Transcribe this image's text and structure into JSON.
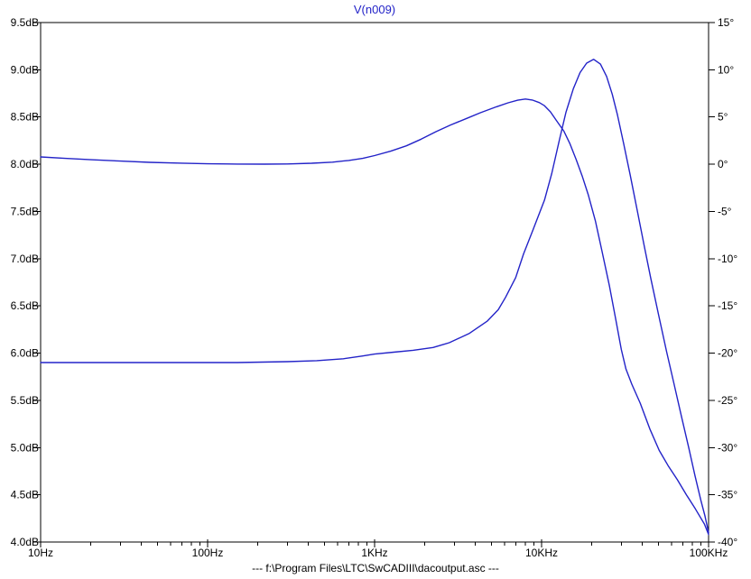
{
  "plot": {
    "title": "V(n009)",
    "title_color": "#2323c8",
    "trace_color": "#2323c8",
    "axis_color": "#000000",
    "background": "#ffffff"
  },
  "status_bar": {
    "text": "--- f:\\Program Files\\LTC\\SwCADIII\\dacoutput.asc ---"
  },
  "chart_data": {
    "type": "line",
    "title": "V(n009)",
    "x_scale": "log",
    "x_range": [
      10,
      100000
    ],
    "grid": false,
    "x_ticks": [
      {
        "value": 10,
        "label": "10Hz"
      },
      {
        "value": 100,
        "label": "100Hz"
      },
      {
        "value": 1000,
        "label": "1KHz"
      },
      {
        "value": 10000,
        "label": "10KHz"
      },
      {
        "value": 100000,
        "label": "100KHz"
      }
    ],
    "x_minor_multiples": [
      2,
      3,
      4,
      5,
      6,
      7,
      8,
      9
    ],
    "y_left": {
      "unit": "dB",
      "min": 4.0,
      "max": 9.5,
      "ticks": [
        {
          "value": 9.5,
          "label": "9.5dB"
        },
        {
          "value": 9.0,
          "label": "9.0dB"
        },
        {
          "value": 8.5,
          "label": "8.5dB"
        },
        {
          "value": 8.0,
          "label": "8.0dB"
        },
        {
          "value": 7.5,
          "label": "7.5dB"
        },
        {
          "value": 7.0,
          "label": "7.0dB"
        },
        {
          "value": 6.5,
          "label": "6.5dB"
        },
        {
          "value": 6.0,
          "label": "6.0dB"
        },
        {
          "value": 5.5,
          "label": "5.5dB"
        },
        {
          "value": 5.0,
          "label": "5.0dB"
        },
        {
          "value": 4.5,
          "label": "4.5dB"
        },
        {
          "value": 4.0,
          "label": "4.0dB"
        }
      ]
    },
    "y_right": {
      "unit": "°",
      "min": -40,
      "max": 15,
      "ticks": [
        {
          "value": 15,
          "label": "15°"
        },
        {
          "value": 10,
          "label": "10°"
        },
        {
          "value": 5,
          "label": "5°"
        },
        {
          "value": 0,
          "label": "0°"
        },
        {
          "value": -5,
          "label": "-5°"
        },
        {
          "value": -10,
          "label": "-10°"
        },
        {
          "value": -15,
          "label": "-15°"
        },
        {
          "value": -20,
          "label": "-20°"
        },
        {
          "value": -25,
          "label": "-25°"
        },
        {
          "value": -30,
          "label": "-30°"
        },
        {
          "value": -35,
          "label": "-35°"
        },
        {
          "value": -40,
          "label": "-40°"
        }
      ]
    },
    "series": [
      {
        "id": "magnitude-trace",
        "name": "V(n009) magnitude (dB)",
        "axis": "left",
        "points": [
          [
            10,
            5.9
          ],
          [
            60,
            5.9
          ],
          [
            150,
            5.9
          ],
          [
            300,
            5.91
          ],
          [
            450,
            5.92
          ],
          [
            650,
            5.94
          ],
          [
            850,
            5.97
          ],
          [
            1000,
            5.99
          ],
          [
            1300,
            6.01
          ],
          [
            1700,
            6.03
          ],
          [
            2240,
            6.06
          ],
          [
            2800,
            6.11
          ],
          [
            3700,
            6.21
          ],
          [
            4740,
            6.34
          ],
          [
            5500,
            6.46
          ],
          [
            6080,
            6.59
          ],
          [
            7000,
            6.8
          ],
          [
            7800,
            7.05
          ],
          [
            9000,
            7.33
          ],
          [
            10400,
            7.62
          ],
          [
            11500,
            7.9
          ],
          [
            12800,
            8.26
          ],
          [
            14000,
            8.55
          ],
          [
            15500,
            8.8
          ],
          [
            17000,
            8.97
          ],
          [
            18600,
            9.07
          ],
          [
            20500,
            9.11
          ],
          [
            22500,
            9.06
          ],
          [
            24500,
            8.93
          ],
          [
            26500,
            8.74
          ],
          [
            28500,
            8.52
          ],
          [
            31000,
            8.22
          ],
          [
            34000,
            7.88
          ],
          [
            37500,
            7.5
          ],
          [
            41000,
            7.15
          ],
          [
            45000,
            6.8
          ],
          [
            50000,
            6.42
          ],
          [
            56000,
            6.02
          ],
          [
            62000,
            5.68
          ],
          [
            69000,
            5.32
          ],
          [
            76000,
            5.0
          ],
          [
            83000,
            4.7
          ],
          [
            90000,
            4.44
          ],
          [
            95000,
            4.28
          ],
          [
            100000,
            4.1
          ]
        ]
      },
      {
        "id": "phase-trace",
        "name": "V(n009) phase (deg)",
        "axis": "right",
        "points": [
          [
            10,
            0.77
          ],
          [
            14,
            0.62
          ],
          [
            20,
            0.48
          ],
          [
            30,
            0.33
          ],
          [
            45,
            0.2
          ],
          [
            70,
            0.11
          ],
          [
            100,
            0.05
          ],
          [
            150,
            0.02
          ],
          [
            220,
            0.01
          ],
          [
            300,
            0.03
          ],
          [
            420,
            0.1
          ],
          [
            560,
            0.22
          ],
          [
            700,
            0.4
          ],
          [
            850,
            0.62
          ],
          [
            1000,
            0.92
          ],
          [
            1250,
            1.38
          ],
          [
            1550,
            1.95
          ],
          [
            1900,
            2.65
          ],
          [
            2330,
            3.45
          ],
          [
            2850,
            4.15
          ],
          [
            3560,
            4.85
          ],
          [
            4300,
            5.45
          ],
          [
            5370,
            6.08
          ],
          [
            6300,
            6.5
          ],
          [
            7200,
            6.78
          ],
          [
            8000,
            6.9
          ],
          [
            8800,
            6.8
          ],
          [
            9700,
            6.52
          ],
          [
            10400,
            6.2
          ],
          [
            11300,
            5.55
          ],
          [
            12300,
            4.6
          ],
          [
            13600,
            3.5
          ],
          [
            14800,
            2.15
          ],
          [
            16100,
            0.5
          ],
          [
            17500,
            -1.25
          ],
          [
            19000,
            -3.2
          ],
          [
            21000,
            -6.0
          ],
          [
            23000,
            -9.2
          ],
          [
            25500,
            -12.9
          ],
          [
            28000,
            -16.7
          ],
          [
            30000,
            -19.6
          ],
          [
            32000,
            -21.7
          ],
          [
            34700,
            -23.3
          ],
          [
            39000,
            -25.3
          ],
          [
            44400,
            -28.0
          ],
          [
            50600,
            -30.3
          ],
          [
            57200,
            -31.9
          ],
          [
            65000,
            -33.4
          ],
          [
            73600,
            -35.0
          ],
          [
            83400,
            -36.5
          ],
          [
            94400,
            -38.1
          ],
          [
            100000,
            -39.2
          ]
        ]
      }
    ]
  }
}
